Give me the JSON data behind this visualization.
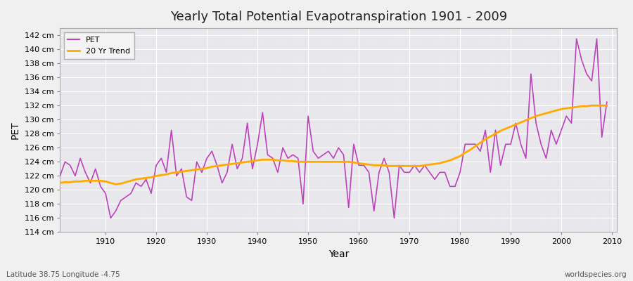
{
  "title": "Yearly Total Potential Evapotranspiration 1901 - 2009",
  "ylabel": "PET",
  "xlabel": "Year",
  "footer_left": "Latitude 38.75 Longitude -4.75",
  "footer_right": "worldspecies.org",
  "pet_color": "#bb44bb",
  "trend_color": "#ffaa00",
  "bg_color": "#f0f0f0",
  "plot_bg_color": "#e8e8ec",
  "ylim": [
    114,
    143
  ],
  "ytick_step": 2,
  "years": [
    1901,
    1902,
    1903,
    1904,
    1905,
    1906,
    1907,
    1908,
    1909,
    1910,
    1911,
    1912,
    1913,
    1914,
    1915,
    1916,
    1917,
    1918,
    1919,
    1920,
    1921,
    1922,
    1923,
    1924,
    1925,
    1926,
    1927,
    1928,
    1929,
    1930,
    1931,
    1932,
    1933,
    1934,
    1935,
    1936,
    1937,
    1938,
    1939,
    1940,
    1941,
    1942,
    1943,
    1944,
    1945,
    1946,
    1947,
    1948,
    1949,
    1950,
    1951,
    1952,
    1953,
    1954,
    1955,
    1956,
    1957,
    1958,
    1959,
    1960,
    1961,
    1962,
    1963,
    1964,
    1965,
    1966,
    1967,
    1968,
    1969,
    1970,
    1971,
    1972,
    1973,
    1974,
    1975,
    1976,
    1977,
    1978,
    1979,
    1980,
    1981,
    1982,
    1983,
    1984,
    1985,
    1986,
    1987,
    1988,
    1989,
    1990,
    1991,
    1992,
    1993,
    1994,
    1995,
    1996,
    1997,
    1998,
    1999,
    2000,
    2001,
    2002,
    2003,
    2004,
    2005,
    2006,
    2007,
    2008,
    2009
  ],
  "pet_values": [
    122.0,
    124.0,
    123.5,
    122.0,
    124.5,
    122.5,
    121.0,
    123.0,
    120.5,
    119.5,
    116.0,
    117.0,
    118.5,
    119.0,
    119.5,
    121.0,
    120.5,
    121.5,
    119.5,
    123.5,
    124.5,
    122.5,
    128.5,
    122.0,
    123.0,
    119.0,
    118.5,
    124.0,
    122.5,
    124.5,
    125.5,
    123.5,
    121.0,
    122.5,
    126.5,
    123.0,
    124.5,
    129.5,
    123.0,
    126.5,
    131.0,
    125.0,
    124.5,
    122.5,
    126.0,
    124.5,
    125.0,
    124.5,
    118.0,
    130.5,
    125.5,
    124.5,
    125.0,
    125.5,
    124.5,
    126.0,
    125.0,
    117.5,
    126.5,
    123.5,
    123.5,
    122.5,
    117.0,
    122.5,
    124.5,
    122.5,
    116.0,
    123.5,
    122.5,
    122.5,
    123.5,
    122.5,
    123.5,
    122.5,
    121.5,
    122.5,
    122.5,
    120.5,
    120.5,
    122.5,
    126.5,
    126.5,
    126.5,
    125.5,
    128.5,
    122.5,
    128.5,
    123.5,
    126.5,
    126.5,
    129.5,
    126.5,
    124.5,
    136.5,
    129.5,
    126.5,
    124.5,
    128.5,
    126.5,
    128.5,
    130.5,
    129.5,
    141.5,
    138.5,
    136.5,
    135.5,
    141.5,
    127.5,
    132.5
  ],
  "trend_values": [
    121.0,
    121.1,
    121.1,
    121.2,
    121.2,
    121.3,
    121.3,
    121.3,
    121.3,
    121.2,
    121.0,
    120.8,
    120.9,
    121.1,
    121.3,
    121.5,
    121.6,
    121.7,
    121.8,
    122.0,
    122.1,
    122.2,
    122.4,
    122.5,
    122.6,
    122.7,
    122.8,
    122.9,
    123.0,
    123.1,
    123.3,
    123.4,
    123.5,
    123.6,
    123.7,
    123.8,
    123.9,
    124.0,
    124.1,
    124.2,
    124.3,
    124.3,
    124.3,
    124.2,
    124.2,
    124.1,
    124.1,
    124.0,
    124.0,
    124.0,
    124.0,
    124.0,
    124.0,
    124.0,
    124.0,
    124.0,
    124.0,
    124.0,
    123.9,
    123.8,
    123.7,
    123.6,
    123.5,
    123.5,
    123.5,
    123.4,
    123.4,
    123.4,
    123.4,
    123.4,
    123.4,
    123.4,
    123.5,
    123.6,
    123.7,
    123.8,
    124.0,
    124.2,
    124.5,
    124.8,
    125.3,
    125.7,
    126.2,
    126.7,
    127.2,
    127.6,
    128.0,
    128.4,
    128.7,
    129.0,
    129.3,
    129.6,
    129.9,
    130.2,
    130.5,
    130.7,
    130.9,
    131.1,
    131.3,
    131.5,
    131.6,
    131.7,
    131.8,
    131.9,
    131.9,
    132.0,
    132.0,
    132.0,
    132.0
  ]
}
